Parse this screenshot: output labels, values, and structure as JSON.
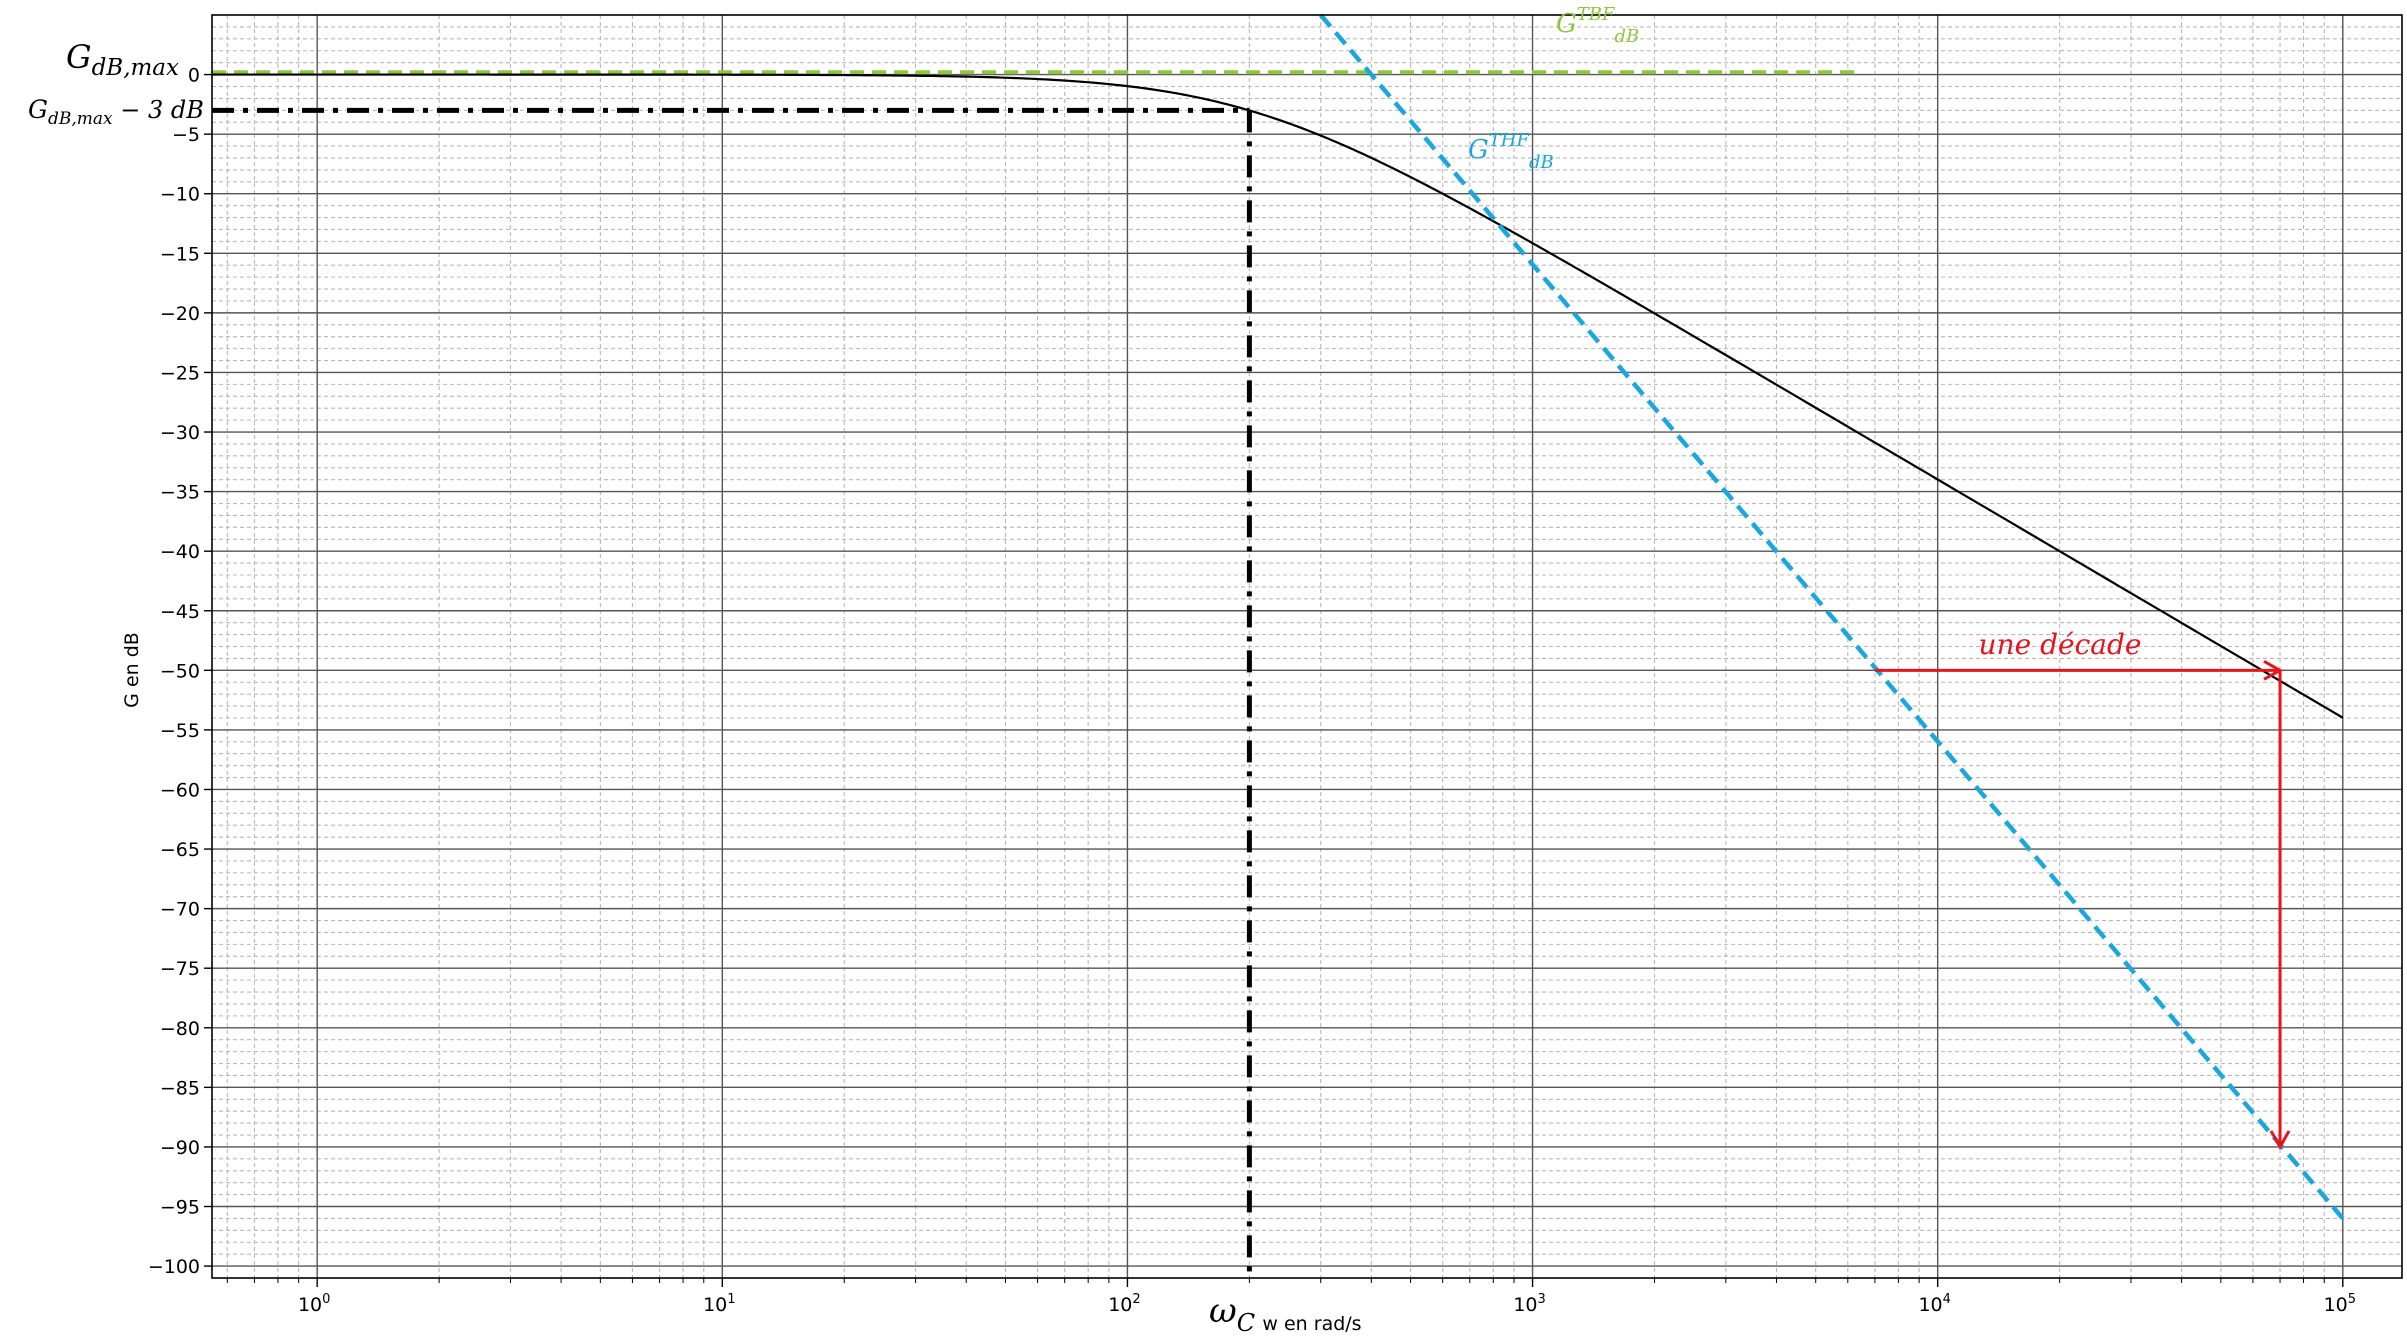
{
  "chart_data": {
    "type": "line",
    "xscale": "log",
    "xlim": [
      0.55,
      140000
    ],
    "ylim": [
      -101,
      5
    ],
    "grid": "major-and-minor",
    "xlabel": "w en rad/s",
    "ylabel": "G en dB",
    "x_ticks": [
      {
        "value": 1,
        "base": "10",
        "exp": "0"
      },
      {
        "value": 10,
        "base": "10",
        "exp": "1"
      },
      {
        "value": 100,
        "base": "10",
        "exp": "2"
      },
      {
        "value": 1000,
        "base": "10",
        "exp": "3"
      },
      {
        "value": 10000,
        "base": "10",
        "exp": "4"
      },
      {
        "value": 100000,
        "base": "10",
        "exp": "5"
      }
    ],
    "y_ticks": [
      0,
      -5,
      -10,
      -15,
      -20,
      -25,
      -30,
      -35,
      -40,
      -45,
      -50,
      -55,
      -60,
      -65,
      -70,
      -75,
      -80,
      -85,
      -90,
      -95,
      -100
    ],
    "y_tick_labels": [
      "0",
      "−5",
      "−10",
      "−15",
      "−20",
      "−25",
      "−30",
      "−35",
      "−40",
      "−45",
      "−50",
      "−55",
      "−60",
      "−65",
      "−70",
      "−75",
      "−80",
      "−85",
      "−90",
      "−95",
      "−100"
    ],
    "cutoff_omega": 200,
    "series": [
      {
        "kind": "first-order-lowpass-gain",
        "color": "#000000",
        "x": [
          0.55,
          1,
          3,
          10,
          30,
          60,
          100,
          150,
          200,
          300,
          500,
          700,
          1000,
          2000,
          3000,
          5000,
          10000,
          20000,
          50000,
          100000
        ],
        "y": [
          0,
          0,
          0,
          -0.004,
          -0.1,
          -0.4,
          -1.0,
          -1.9,
          -3.0,
          -5.1,
          -8.6,
          -11.1,
          -14.2,
          -20.0,
          -23.5,
          -28.0,
          -34.0,
          -40.0,
          -47.9,
          -54.0
        ]
      },
      {
        "kind": "low-frequency-asymptote",
        "color": "#8dc63f",
        "style": "dashed",
        "x": [
          0.55,
          6500
        ],
        "y": [
          0.2,
          0.2
        ]
      },
      {
        "kind": "high-frequency-asymptote",
        "color": "#1aa7e0",
        "style": "dashed",
        "x": [
          300,
          100000
        ],
        "y": [
          5,
          -96
        ]
      }
    ],
    "reference_lines": {
      "color": "#000000",
      "style": "dash-dot",
      "y_level": -3,
      "x_from": 0.55,
      "x_at": 200,
      "y_bottom": -101
    },
    "decade_annotation": {
      "color": "#e8141c",
      "text": "une décade",
      "x_start": 7000,
      "x_end": 70000,
      "y_start": -50,
      "y_end": -90
    },
    "annotations": {
      "gmax_main": "G",
      "gmax_sub": "dB,max",
      "gmax3_main": "G",
      "gmax3_sub": "dB,max",
      "gmax3_rest": " − 3 dB",
      "omega_main": "ω",
      "omega_sub": "C",
      "tbf_main": "G",
      "tbf_sup": "TBF",
      "tbf_sub": "dB",
      "thf_main": "G",
      "thf_sup": "THF",
      "thf_sub": "dB"
    }
  }
}
